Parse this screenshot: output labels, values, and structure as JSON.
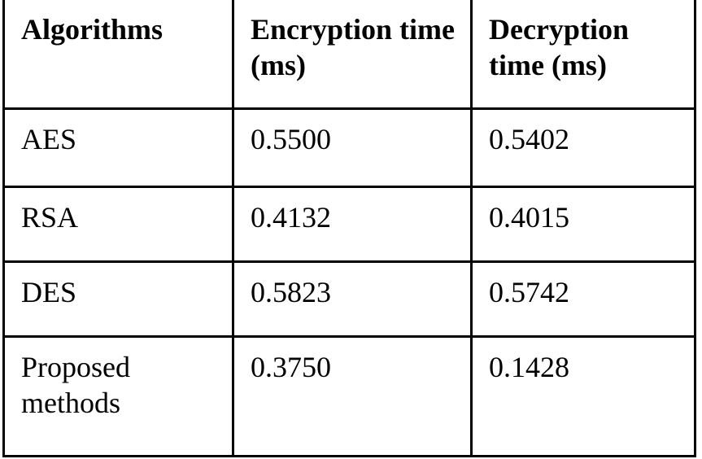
{
  "table": {
    "headers": [
      "Algorithms",
      "Encryption time (ms)",
      "Decryption time (ms)"
    ],
    "rows": [
      [
        "AES",
        "0.5500",
        "0.5402"
      ],
      [
        "RSA",
        "0.4132",
        "0.4015"
      ],
      [
        "DES",
        "0.5823",
        "0.5742"
      ],
      [
        "Proposed methods",
        "0.3750",
        "0.1428"
      ]
    ]
  }
}
